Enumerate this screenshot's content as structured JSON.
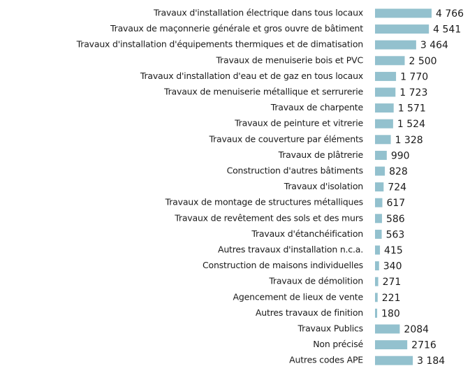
{
  "chart_data": {
    "type": "bar",
    "orientation": "horizontal",
    "color": "#93c1ce",
    "categories": [
      "Travaux d'installation électrique dans tous locaux",
      "Travaux de maçonnerie générale et gros ouvre de bâtiment",
      "Travaux d'installation d'équipements thermiques et de dimatisation",
      "Travaux de menuiserie bois et PVC",
      "Travaux d'installation d'eau et de gaz en tous locaux",
      "Travaux de menuiserie métallique et serrurerie",
      "Travaux de charpente",
      "Travaux de peinture et vitrerie",
      "Travaux de couverture par éléments",
      "Travaux de plâtrerie",
      "Construction d'autres bâtiments",
      "Travaux d'isolation",
      "Travaux de montage de structures métalliques",
      "Travaux de revêtement des sols et des murs",
      "Travaux d'étanchéification",
      "Autres travaux d'installation n.c.a.",
      "Construction de maisons individuelles",
      "Travaux de démolition",
      "Agencement de lieux de vente",
      "Autres travaux de finition",
      "Travaux Publics",
      "Non précisé",
      "Autres codes APE"
    ],
    "values": [
      4766,
      4541,
      3464,
      2500,
      1770,
      1723,
      1571,
      1524,
      1328,
      990,
      828,
      724,
      617,
      586,
      563,
      415,
      340,
      271,
      221,
      180,
      2084,
      2716,
      3184
    ],
    "value_labels": [
      "4 766",
      "4 541",
      "3 464",
      "2 500",
      "1 770",
      "1 723",
      "1 571",
      "1 524",
      "1 328",
      "990",
      "828",
      "724",
      "617",
      "586",
      "563",
      "415",
      "340",
      "271",
      "221",
      "180",
      "2084",
      "2716",
      "3 184"
    ]
  }
}
